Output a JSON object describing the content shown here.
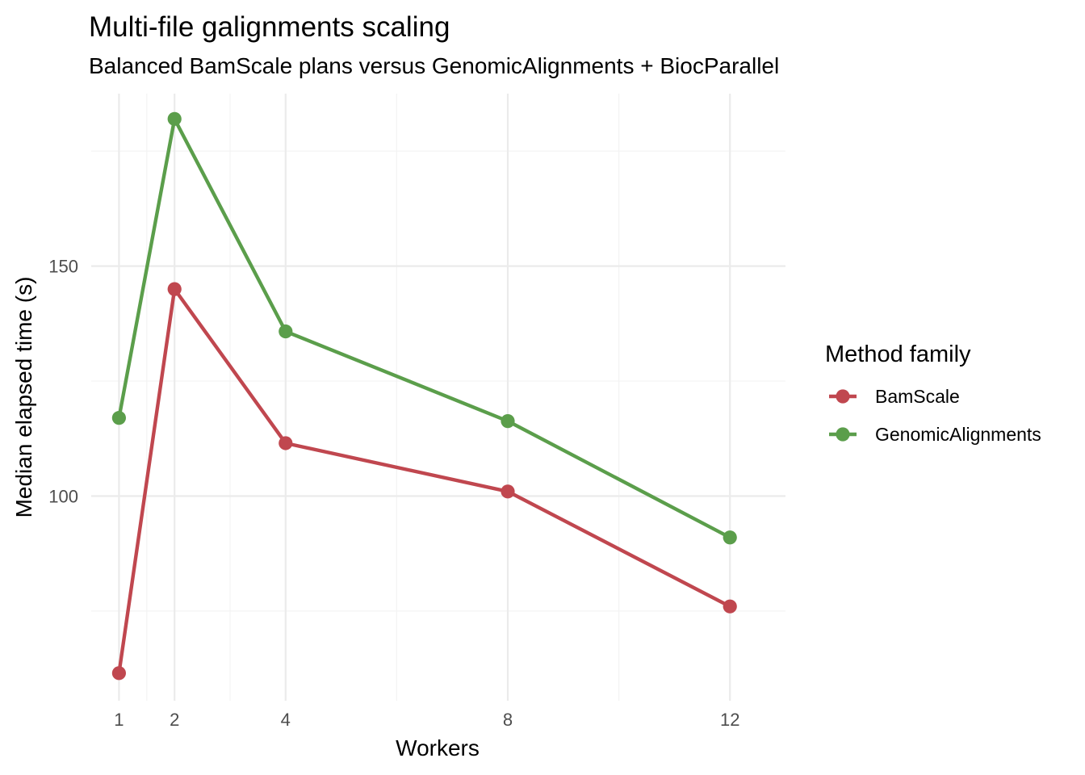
{
  "chart_data": {
    "type": "line",
    "title": "Multi-file galignments scaling",
    "subtitle": "Balanced BamScale plans versus GenomicAlignments + BiocParallel",
    "xlabel": "Workers",
    "ylabel": "Median elapsed time (s)",
    "x": [
      1,
      2,
      4,
      8,
      12
    ],
    "x_ticks": [
      1,
      2,
      4,
      8,
      12
    ],
    "y_ticks": [
      100,
      150
    ],
    "xlim": [
      0.5,
      13
    ],
    "ylim": [
      55.5,
      187.5
    ],
    "grid": true,
    "legend": {
      "title": "Method family",
      "position": "right"
    },
    "series": [
      {
        "name": "BamScale",
        "color": "#c0474f",
        "values": [
          61.5,
          145.0,
          111.5,
          101.0,
          76.0
        ]
      },
      {
        "name": "GenomicAlignments",
        "color": "#5b9e4b",
        "values": [
          117.0,
          182.0,
          135.8,
          116.3,
          91.0
        ]
      }
    ]
  }
}
